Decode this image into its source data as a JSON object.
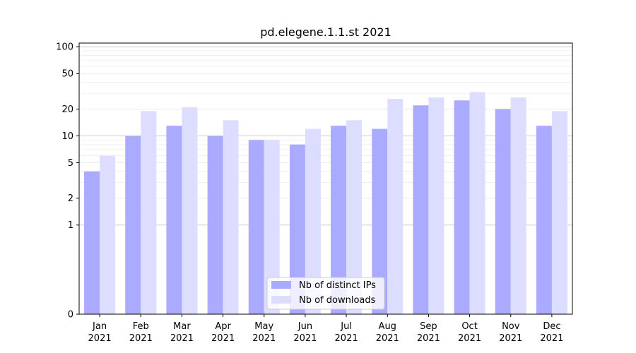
{
  "chart_data": {
    "type": "bar",
    "title": "pd.elegene.1.1.st 2021",
    "xlabel": "",
    "ylabel": "",
    "y_scale": "symlog",
    "ylim": [
      0,
      110
    ],
    "y_ticks": [
      0,
      1,
      2,
      5,
      10,
      20,
      50,
      100
    ],
    "grid": true,
    "legend_position": "bottom-center",
    "categories": [
      [
        "Jan",
        "2021"
      ],
      [
        "Feb",
        "2021"
      ],
      [
        "Mar",
        "2021"
      ],
      [
        "Apr",
        "2021"
      ],
      [
        "May",
        "2021"
      ],
      [
        "Jun",
        "2021"
      ],
      [
        "Jul",
        "2021"
      ],
      [
        "Aug",
        "2021"
      ],
      [
        "Sep",
        "2021"
      ],
      [
        "Oct",
        "2021"
      ],
      [
        "Nov",
        "2021"
      ],
      [
        "Dec",
        "2021"
      ]
    ],
    "series": [
      {
        "name": "Nb of distinct IPs",
        "color": "#aaaaff",
        "values": [
          4,
          10,
          13,
          10,
          9,
          8,
          13,
          12,
          22,
          25,
          20,
          13
        ]
      },
      {
        "name": "Nb of downloads",
        "color": "#ddddff",
        "values": [
          6,
          19,
          21,
          15,
          9,
          12,
          15,
          26,
          27,
          31,
          27,
          19
        ]
      }
    ]
  }
}
